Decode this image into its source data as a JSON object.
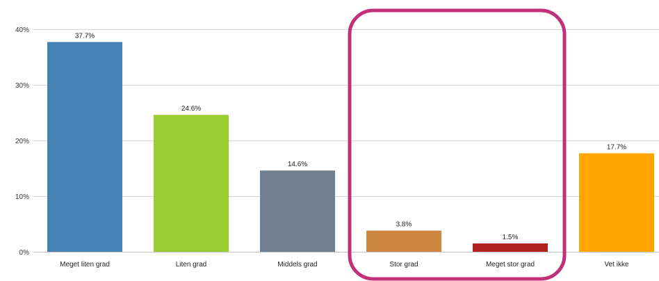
{
  "chart_data": {
    "type": "bar",
    "categories": [
      "Meget liten grad",
      "Liten grad",
      "Middels grad",
      "Stor grad",
      "Meget stor grad",
      "Vet ikke"
    ],
    "values": [
      37.7,
      24.6,
      14.6,
      3.8,
      1.5,
      17.7
    ],
    "data_labels": [
      "37.7%",
      "24.6%",
      "14.6%",
      "3.8%",
      "1.5%",
      "17.7%"
    ],
    "colors": [
      "#4682b4",
      "#9acd32",
      "#708090",
      "#cd853f",
      "#b22222",
      "#ffa500"
    ],
    "ylim": [
      0,
      40
    ],
    "yticks": [
      0,
      10,
      20,
      30,
      40
    ],
    "ytick_labels": [
      "0%",
      "10%",
      "20%",
      "30%",
      "40%"
    ],
    "grid": true,
    "title": "",
    "xlabel": "",
    "ylabel": "",
    "highlight": {
      "categories": [
        "Stor grad",
        "Meget stor grad"
      ],
      "color": "#c2307a"
    }
  }
}
